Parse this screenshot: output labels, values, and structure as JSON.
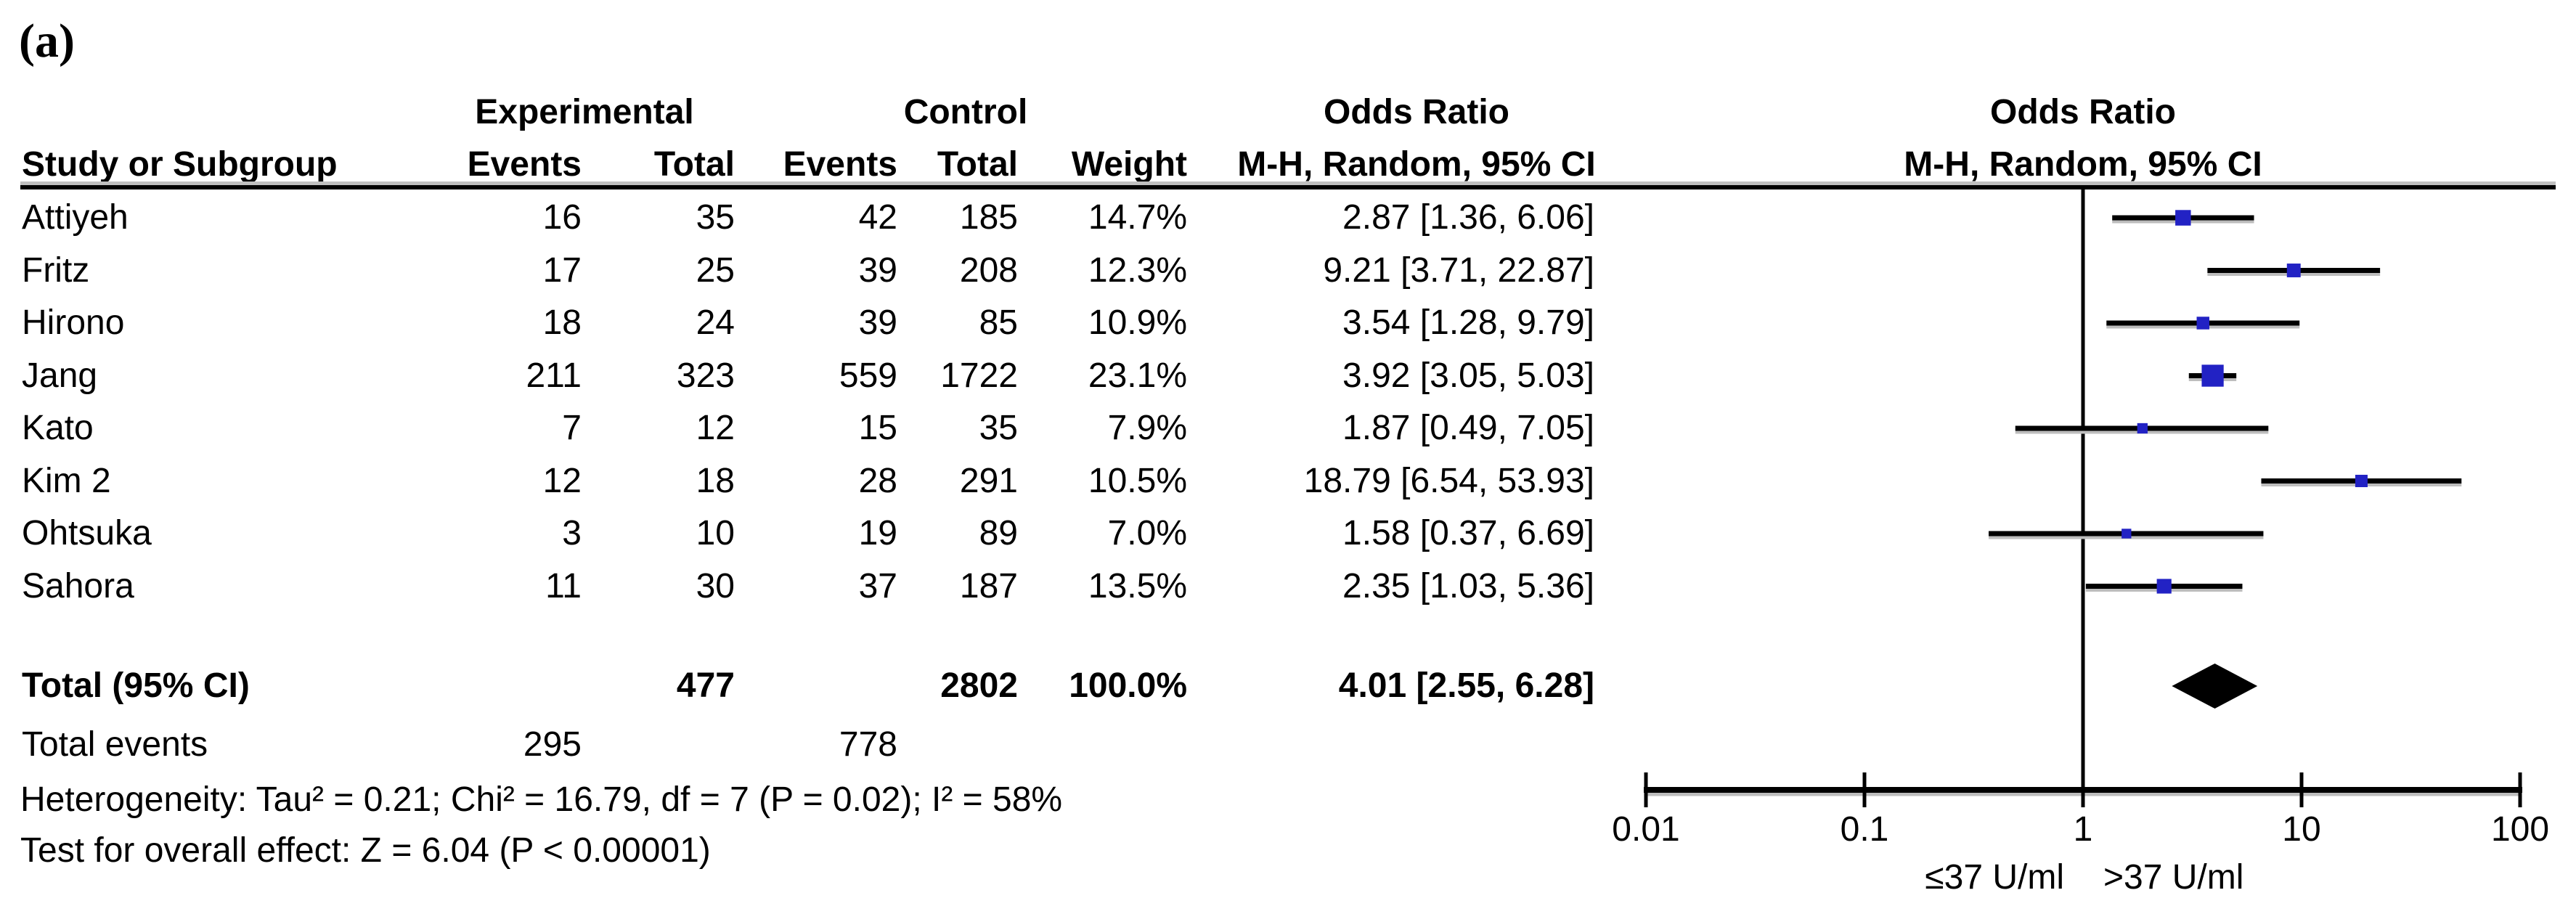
{
  "figure_label": "(a)",
  "table": {
    "group_headers": {
      "experimental": "Experimental",
      "control": "Control",
      "odds_ratio_table": "Odds Ratio",
      "odds_ratio_plot": "Odds Ratio"
    },
    "col_headers": {
      "study": "Study or Subgroup",
      "exp_events": "Events",
      "exp_total": "Total",
      "ctl_events": "Events",
      "ctl_total": "Total",
      "weight": "Weight",
      "mh_table": "M-H, Random, 95% CI",
      "mh_plot": "M-H, Random, 95% CI"
    },
    "total_row": {
      "label": "Total (95% CI)",
      "exp_total": "477",
      "ctl_total": "2802",
      "weight": "100.0%",
      "or_text": "4.01 [2.55, 6.28]"
    },
    "total_events": {
      "label": "Total events",
      "exp_events": "295",
      "ctl_events": "778"
    },
    "heterogeneity": "Heterogeneity: Tau² = 0.21; Chi² = 16.79, df = 7 (P = 0.02); I² = 58%",
    "overall_effect": "Test for overall effect: Z = 6.04 (P < 0.00001)"
  },
  "chart_data": {
    "type": "forest",
    "scale": "log10",
    "xlim": [
      0.01,
      100
    ],
    "effect_measure": "Odds Ratio (M-H, Random, 95% CI)",
    "axis_ticks": [
      {
        "value": 0.01,
        "label": "0.01"
      },
      {
        "value": 0.1,
        "label": "0.1"
      },
      {
        "value": 1,
        "label": "1"
      },
      {
        "value": 10,
        "label": "10"
      },
      {
        "value": 100,
        "label": "100"
      }
    ],
    "axis_label_left": "≤37 U/ml",
    "axis_label_right": ">37 U/ml",
    "marker_color": "#2222C4",
    "line_color": "#000000",
    "studies": [
      {
        "name": "Attiyeh",
        "exp_events": 16,
        "exp_total": 35,
        "ctl_events": 42,
        "ctl_total": 185,
        "weight": "14.7%",
        "weight_pct": 14.7,
        "or": 2.87,
        "ci_low": 1.36,
        "ci_high": 6.06,
        "or_text": "2.87 [1.36, 6.06]"
      },
      {
        "name": "Fritz",
        "exp_events": 17,
        "exp_total": 25,
        "ctl_events": 39,
        "ctl_total": 208,
        "weight": "12.3%",
        "weight_pct": 12.3,
        "or": 9.21,
        "ci_low": 3.71,
        "ci_high": 22.87,
        "or_text": "9.21 [3.71, 22.87]"
      },
      {
        "name": "Hirono",
        "exp_events": 18,
        "exp_total": 24,
        "ctl_events": 39,
        "ctl_total": 85,
        "weight": "10.9%",
        "weight_pct": 10.9,
        "or": 3.54,
        "ci_low": 1.28,
        "ci_high": 9.79,
        "or_text": "3.54 [1.28, 9.79]"
      },
      {
        "name": "Jang",
        "exp_events": 211,
        "exp_total": 323,
        "ctl_events": 559,
        "ctl_total": 1722,
        "weight": "23.1%",
        "weight_pct": 23.1,
        "or": 3.92,
        "ci_low": 3.05,
        "ci_high": 5.03,
        "or_text": "3.92 [3.05, 5.03]"
      },
      {
        "name": "Kato",
        "exp_events": 7,
        "exp_total": 12,
        "ctl_events": 15,
        "ctl_total": 35,
        "weight": "7.9%",
        "weight_pct": 7.9,
        "or": 1.87,
        "ci_low": 0.49,
        "ci_high": 7.05,
        "or_text": "1.87 [0.49, 7.05]"
      },
      {
        "name": "Kim 2",
        "exp_events": 12,
        "exp_total": 18,
        "ctl_events": 28,
        "ctl_total": 291,
        "weight": "10.5%",
        "weight_pct": 10.5,
        "or": 18.79,
        "ci_low": 6.54,
        "ci_high": 53.93,
        "or_text": "18.79 [6.54, 53.93]"
      },
      {
        "name": "Ohtsuka",
        "exp_events": 3,
        "exp_total": 10,
        "ctl_events": 19,
        "ctl_total": 89,
        "weight": "7.0%",
        "weight_pct": 7.0,
        "or": 1.58,
        "ci_low": 0.37,
        "ci_high": 6.69,
        "or_text": "1.58 [0.37, 6.69]"
      },
      {
        "name": "Sahora",
        "exp_events": 11,
        "exp_total": 30,
        "ctl_events": 37,
        "ctl_total": 187,
        "weight": "13.5%",
        "weight_pct": 13.5,
        "or": 2.35,
        "ci_low": 1.03,
        "ci_high": 5.36,
        "or_text": "2.35 [1.03, 5.36]"
      }
    ],
    "total": {
      "or": 4.01,
      "ci_low": 2.55,
      "ci_high": 6.28
    }
  }
}
